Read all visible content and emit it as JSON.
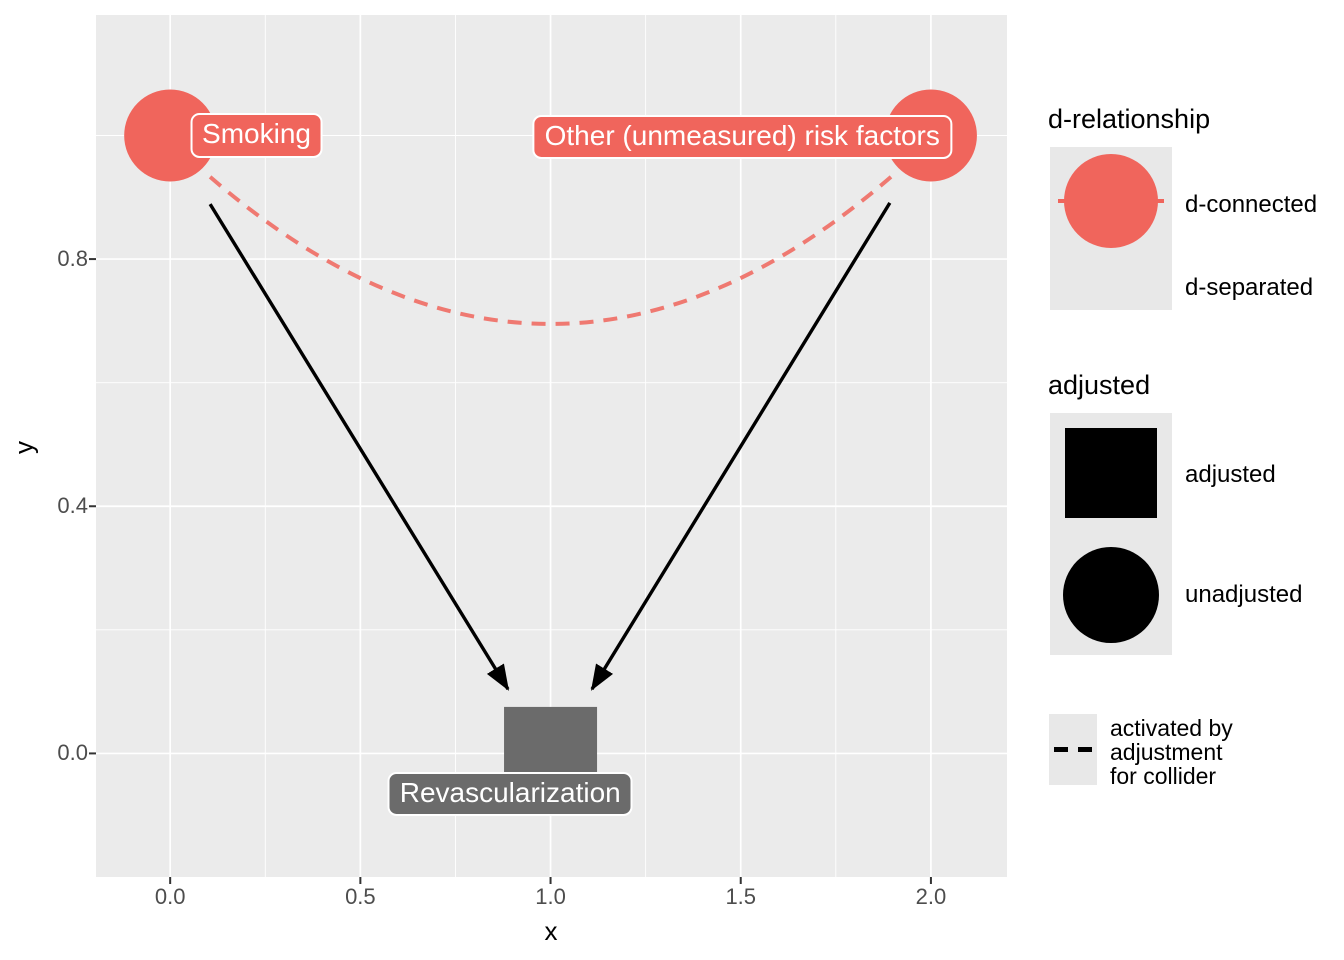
{
  "chart_data": {
    "type": "scatter",
    "subtype": "dag",
    "title": "",
    "xlabel": "x",
    "ylabel": "y",
    "grid": true,
    "panel_background": "#EBEBEB",
    "grid_color": "#FFFFFF",
    "xlim": [
      -0.195,
      2.2
    ],
    "ylim": [
      -0.2,
      1.195
    ],
    "x_ticks": {
      "values": [
        0.0,
        0.5,
        1.0,
        1.5,
        2.0
      ],
      "labels": [
        "0.0",
        "0.5",
        "1.0",
        "1.5",
        "2.0"
      ]
    },
    "y_ticks": {
      "values": [
        0.0,
        0.4,
        0.8
      ],
      "labels": [
        "0.8",
        "0.4",
        "0.0"
      ],
      "labels_by_value": {
        "0": "0.0",
        "0.4": "0.4",
        "0.8": "0.8"
      }
    },
    "x_minor": [
      0.25,
      0.75,
      1.25,
      1.75
    ],
    "y_minor": [
      0.2,
      0.6,
      1.0
    ],
    "nodes": [
      {
        "id": "smoking",
        "label": "Smoking",
        "x": 0,
        "y": 1,
        "shape": "circle",
        "fill": "#F0655C",
        "d_relationship": "d-connected",
        "adjusted": "unadjusted",
        "label_x": 0.227,
        "label_y": 1.0
      },
      {
        "id": "other-risk-factors",
        "label": "Other (unmeasured) risk factors",
        "x": 2,
        "y": 1,
        "shape": "circle",
        "fill": "#F0655C",
        "d_relationship": "d-connected",
        "adjusted": "unadjusted",
        "label_x": 1.504,
        "label_y": 0.998
      },
      {
        "id": "revascularization",
        "label": "Revascularization",
        "x": 1,
        "y": 0,
        "shape": "square",
        "fill": "#6B6B6B",
        "d_relationship": "adjusted-collider",
        "adjusted": "adjusted",
        "label_x": 0.894,
        "label_y": -0.065
      }
    ],
    "edges": [
      {
        "from": "smoking",
        "to": "revascularization",
        "style": "solid",
        "color": "#000000",
        "arrow": true,
        "x1": 0.105,
        "y1": 0.889,
        "x2": 0.888,
        "y2": 0.104
      },
      {
        "from": "other-risk-factors",
        "to": "revascularization",
        "style": "solid",
        "color": "#000000",
        "arrow": true,
        "x1": 1.892,
        "y1": 0.891,
        "x2": 1.109,
        "y2": 0.104
      },
      {
        "from": "smoking",
        "to": "other-risk-factors",
        "style": "dashed",
        "color": "#F0655C",
        "arrow": false,
        "arc": true,
        "meaning": "activated by adjustment for collider",
        "x1": 0.105,
        "y1": 0.933,
        "cx": 0.999,
        "cy": 0.457,
        "x2": 1.895,
        "y2": 0.933
      }
    ]
  },
  "legends": {
    "d_relationship": {
      "title": "d-relationship",
      "items": [
        {
          "label": "d-connected",
          "glyph": "circle",
          "color": "#F0655C"
        },
        {
          "label": "d-separated",
          "glyph": "none",
          "color": ""
        }
      ]
    },
    "adjusted": {
      "title": "adjusted",
      "items": [
        {
          "label": "adjusted",
          "glyph": "square",
          "color": "#000000"
        },
        {
          "label": "unadjusted",
          "glyph": "circle",
          "color": "#000000"
        }
      ]
    },
    "collider": {
      "title": "",
      "items": [
        {
          "label": "activated by adjustment for collider",
          "glyph": "dashed-line",
          "color": "#000000"
        }
      ]
    }
  },
  "colors": {
    "d_connected_red": "#F0655C",
    "adjusted_gray": "#6B6B6B",
    "panel_gray": "#EBEBEB",
    "axis_text_gray": "#4D4D4D",
    "black": "#000000"
  }
}
